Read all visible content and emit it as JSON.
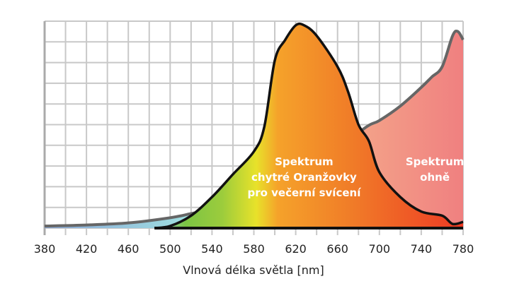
{
  "chart_data": {
    "type": "area",
    "xlabel": "Vlnová délka světla [nm]",
    "ylabel": "",
    "xlim": [
      380,
      780
    ],
    "ylim": [
      0,
      100
    ],
    "x_ticks": [
      380,
      420,
      460,
      500,
      540,
      580,
      620,
      660,
      700,
      740,
      780
    ],
    "grid": true,
    "series": [
      {
        "name": "Spektrum ohně",
        "label_lines": [
          "Spektrum",
          "ohně"
        ],
        "stroke": "#666666",
        "fill_from": "#9fdfe0",
        "fill_to": "#f08080",
        "x": [
          380,
          420,
          460,
          500,
          520,
          540,
          560,
          600,
          640,
          685,
          700,
          720,
          740,
          750,
          760,
          770,
          775,
          780
        ],
        "y": [
          1,
          1.5,
          2.5,
          5,
          7,
          9,
          12,
          18,
          30,
          48,
          52,
          59,
          68,
          73,
          78,
          93,
          95,
          91
        ]
      },
      {
        "name": "Spektrum chytré Oranžovky pro večerní svícení",
        "label_lines": [
          "Spektrum",
          "chytré Oranžovky",
          "pro večerní svícení"
        ],
        "stroke": "#111111",
        "x": [
          485,
          500,
          520,
          540,
          560,
          580,
          590,
          600,
          610,
          620,
          628,
          640,
          660,
          670,
          680,
          690,
          700,
          720,
          740,
          760,
          770,
          780
        ],
        "y": [
          0,
          1,
          6,
          15,
          26,
          37,
          49,
          81,
          91,
          98,
          98,
          93,
          78,
          66,
          50,
          42,
          27,
          15,
          8,
          6,
          2,
          3
        ]
      }
    ]
  }
}
